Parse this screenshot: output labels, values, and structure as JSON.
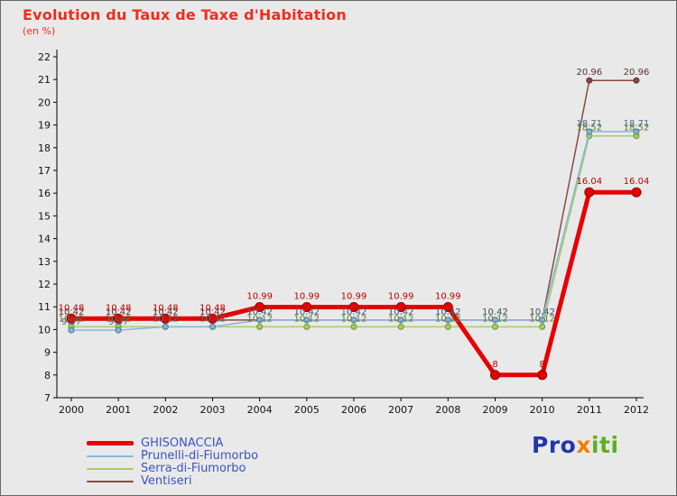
{
  "header": {
    "title": "Evolution du Taux de Taxe d'Habitation",
    "subtitle": "(en %)"
  },
  "chart_data": {
    "type": "line",
    "title": "Evolution du Taux de Taxe d'Habitation",
    "subtitle": "(en %)",
    "xlabel": "",
    "ylabel": "",
    "x": [
      2000,
      2001,
      2002,
      2003,
      2004,
      2005,
      2006,
      2007,
      2008,
      2009,
      2010,
      2011,
      2012
    ],
    "ylim": [
      7,
      22
    ],
    "ytick_step": 1,
    "grid": false,
    "legend_position": "bottom-left",
    "series": [
      {
        "name": "GHISONACCIA",
        "color": "#e60000",
        "edge": "#8b0000",
        "label_color": "#bb0000",
        "width": 5,
        "marker": 5,
        "values": [
          10.48,
          10.48,
          10.48,
          10.48,
          10.99,
          10.99,
          10.99,
          10.99,
          10.99,
          8,
          8,
          16.04,
          16.04
        ]
      },
      {
        "name": "Prunelli-di-Fiumorbo",
        "color": "#85b8d9",
        "edge": "#4a7a9b",
        "label_color": "#4a6d80",
        "width": 1.5,
        "marker": 3,
        "values": [
          9.97,
          9.97,
          10.12,
          10.12,
          10.42,
          10.42,
          10.42,
          10.42,
          10.42,
          10.42,
          10.42,
          18.71,
          18.71
        ]
      },
      {
        "name": "Serra-di-Fiumorbo",
        "color": "#a8cc66",
        "edge": "#6e9430",
        "label_color": "#5a7a2a",
        "width": 1.5,
        "marker": 3,
        "values": [
          10.12,
          10.12,
          10.12,
          10.12,
          10.12,
          10.12,
          10.12,
          10.12,
          10.12,
          10.12,
          10.12,
          18.52,
          18.52
        ]
      },
      {
        "name": "Ventiseri",
        "color": "#8a4a42",
        "edge": "#5a2a25",
        "label_color": "#5f3030",
        "width": 1.5,
        "marker": 3,
        "values": [
          10.42,
          10.42,
          10.42,
          10.42,
          10.42,
          10.42,
          10.42,
          10.42,
          10.42,
          10.42,
          10.42,
          20.96,
          20.96
        ]
      }
    ]
  },
  "logo": {
    "parts": [
      {
        "text": "Pro",
        "color": "#2236ae"
      },
      {
        "text": "x",
        "color": "#f28000"
      },
      {
        "text": "iti",
        "color": "#5fae1f"
      }
    ]
  }
}
